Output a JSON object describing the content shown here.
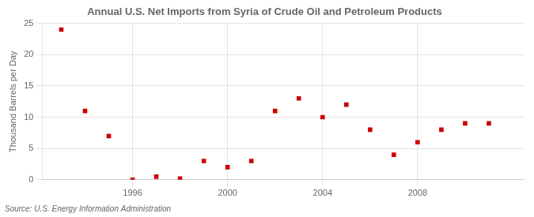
{
  "chart_data": {
    "type": "scatter",
    "title": "Annual U.S. Net Imports from Syria of Crude Oil and Petroleum Products",
    "ylabel": "Thousand Barrels per Day",
    "source": "Source: U.S. Energy Information Administration",
    "x": [
      1993,
      1994,
      1995,
      1996,
      1997,
      1998,
      1999,
      2000,
      2001,
      2002,
      2003,
      2004,
      2005,
      2006,
      2007,
      2008,
      2009,
      2010,
      2011
    ],
    "values": [
      24,
      11,
      7,
      0,
      0.5,
      0.2,
      3,
      2,
      3,
      11,
      13,
      10,
      12,
      8,
      4,
      6,
      8,
      9,
      9
    ],
    "color": "#cc0000",
    "marker": "square",
    "xlim": [
      1992.2,
      2012.5
    ],
    "xticks": [
      1996,
      2000,
      2004,
      2008
    ],
    "ylim": [
      0,
      25
    ],
    "yticks": [
      0,
      5,
      10,
      15,
      20,
      25
    ],
    "grid": true
  }
}
